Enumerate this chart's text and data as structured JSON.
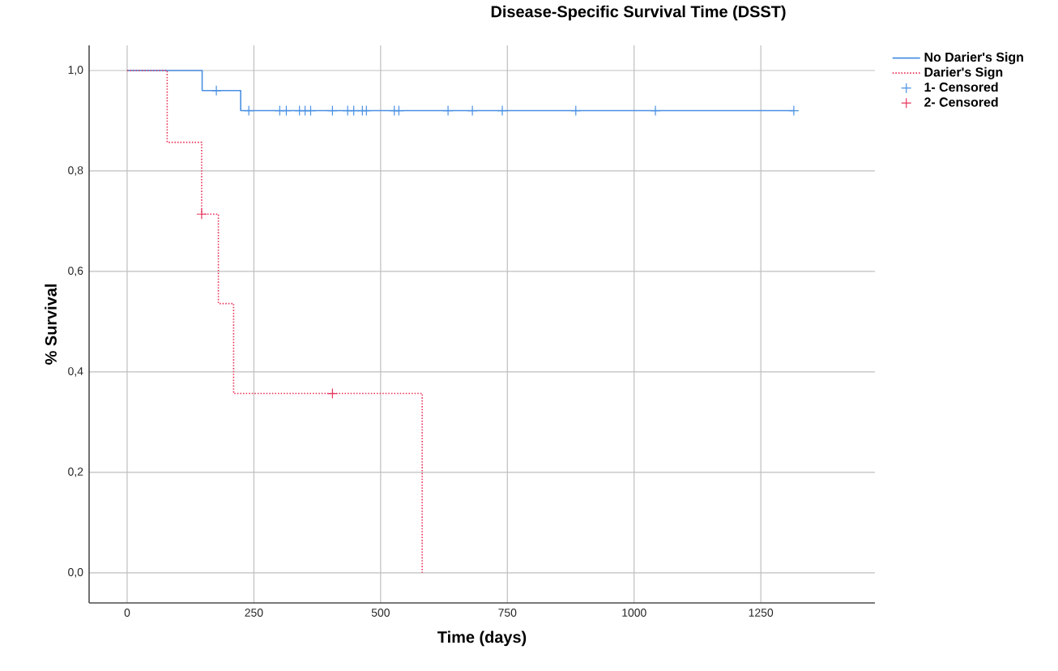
{
  "chart_data": {
    "type": "step",
    "title": "Disease-Specific Survival Time (DSST)",
    "xlabel": "Time (days)",
    "ylabel": "% Survival",
    "xlim": [
      -75,
      1475
    ],
    "ylim": [
      -0.06,
      1.05
    ],
    "xticks": [
      0,
      250,
      500,
      750,
      1000,
      1250
    ],
    "yticks": [
      {
        "value": 0,
        "label": "0,0"
      },
      {
        "value": 0.2,
        "label": "0,2"
      },
      {
        "value": 0.4,
        "label": "0,4"
      },
      {
        "value": 0.6,
        "label": "0,6"
      },
      {
        "value": 0.8,
        "label": "0,8"
      },
      {
        "value": 1,
        "label": "1,0"
      }
    ],
    "grid": true,
    "legend": "right",
    "series": [
      {
        "name": "No Darier's Sign",
        "color": "#4a90e2",
        "line_style": "solid",
        "x": [
          0,
          148,
          224,
          1315
        ],
        "values": [
          1,
          0.96,
          0.92,
          0.92
        ]
      },
      {
        "name": "Darier's Sign",
        "color": "#e8365c",
        "line_style": "dotted",
        "x": [
          0,
          79,
          147,
          180,
          210,
          582
        ],
        "values": [
          1,
          0.857,
          0.714,
          0.536,
          0.357,
          0
        ]
      },
      {
        "name": "1- Censored",
        "type": "scatter",
        "marker": "cross",
        "color": "#4a90e2",
        "x": [
          176,
          240,
          301,
          314,
          340,
          351,
          362,
          405,
          435,
          447,
          464,
          472,
          527,
          536,
          633,
          681,
          740,
          885,
          1042,
          1315
        ],
        "values": [
          0.96,
          0.92,
          0.92,
          0.92,
          0.92,
          0.92,
          0.92,
          0.92,
          0.92,
          0.92,
          0.92,
          0.92,
          0.92,
          0.92,
          0.92,
          0.92,
          0.92,
          0.92,
          0.92,
          0.92
        ]
      },
      {
        "name": "2- Censored",
        "type": "scatter",
        "marker": "cross",
        "color": "#e8365c",
        "x": [
          147,
          405
        ],
        "values": [
          0.714,
          0.357
        ]
      }
    ]
  }
}
